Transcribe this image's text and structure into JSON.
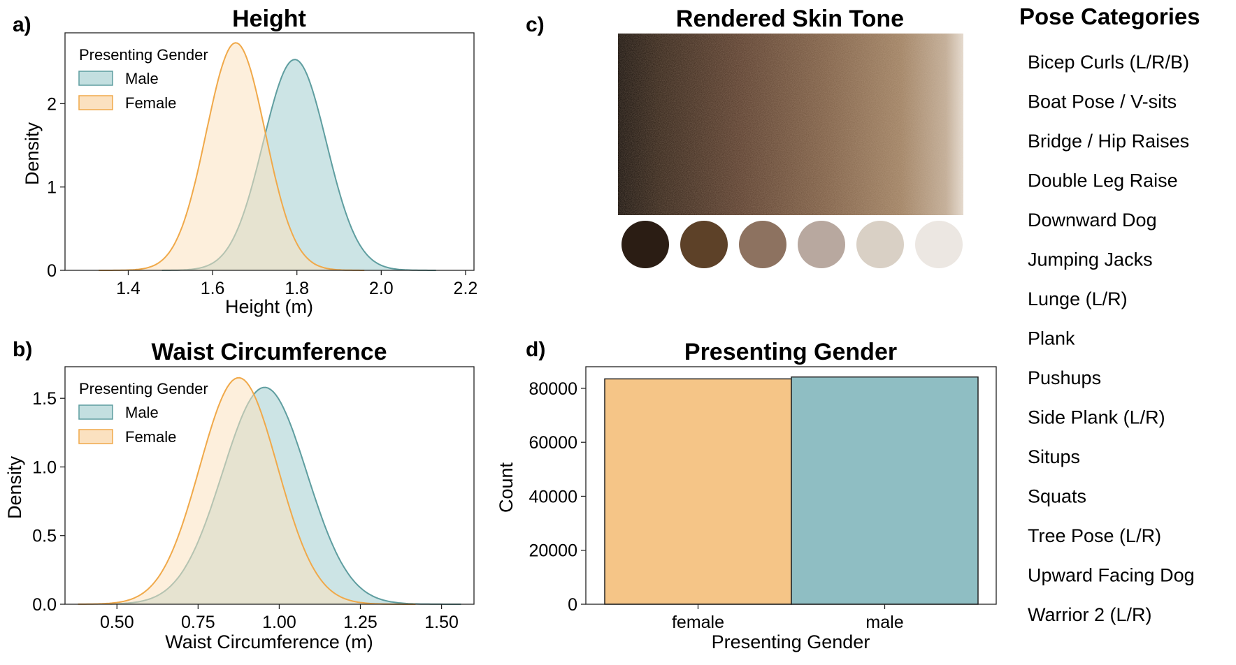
{
  "panels": {
    "a": {
      "label": "a)"
    },
    "b": {
      "label": "b)"
    },
    "c": {
      "label": "c)",
      "title": "Rendered Skin Tone"
    },
    "d": {
      "label": "d)"
    }
  },
  "skin_tones": {
    "swatches": [
      "#2b1d14",
      "#5d4128",
      "#8d7260",
      "#b8a89f",
      "#d9d0c5",
      "#ece7e2"
    ]
  },
  "pose_categories": {
    "title": "Pose Categories",
    "items": [
      "Bicep Curls (L/R/B)",
      "Boat Pose / V-sits",
      "Bridge / Hip Raises",
      "Double Leg Raise",
      "Downward Dog",
      "Jumping Jacks",
      "Lunge (L/R)",
      "Plank",
      "Pushups",
      "Side Plank (L/R)",
      "Situps",
      "Squats",
      "Tree Pose (L/R)",
      "Upward Facing Dog",
      "Warrior 2 (L/R)"
    ]
  },
  "colors": {
    "male": "#5f9ea0",
    "female": "#f0a94a",
    "male_fill": "#c3dfe0",
    "female_fill": "#fbe1c0",
    "bar_female": "#f5c587",
    "bar_male": "#8fbec3"
  },
  "chart_data": [
    {
      "id": "height",
      "type": "area",
      "title": "Height",
      "xlabel": "Height (m)",
      "ylabel": "Density",
      "xlim": [
        1.25,
        2.22
      ],
      "ylim": [
        0,
        2.85
      ],
      "xticks": [
        1.4,
        1.6,
        1.8,
        2.0,
        2.2
      ],
      "xtick_labels": [
        "1.4",
        "1.6",
        "1.8",
        "2.0",
        "2.2"
      ],
      "yticks": [
        0,
        1,
        2
      ],
      "ytick_labels": [
        "0",
        "1",
        "2"
      ],
      "legend": {
        "title": "Presenting Gender",
        "placement": "top-left"
      },
      "series": [
        {
          "name": "Male",
          "mean": 1.795,
          "sd": 0.075,
          "peak": 2.53,
          "x_range": [
            1.48,
            2.13
          ]
        },
        {
          "name": "Female",
          "mean": 1.655,
          "sd": 0.07,
          "peak": 2.73,
          "x_range": [
            1.33,
            1.96
          ]
        }
      ]
    },
    {
      "id": "waist",
      "type": "area",
      "title": "Waist Circumference",
      "xlabel": "Waist Circumference (m)",
      "ylabel": "Density",
      "xlim": [
        0.34,
        1.6
      ],
      "ylim": [
        0,
        1.73
      ],
      "xticks": [
        0.5,
        0.75,
        1.0,
        1.25,
        1.5
      ],
      "xtick_labels": [
        "0.50",
        "0.75",
        "1.00",
        "1.25",
        "1.50"
      ],
      "yticks": [
        0,
        0.5,
        1.0,
        1.5
      ],
      "ytick_labels": [
        "0.0",
        "0.5",
        "1.0",
        "1.5"
      ],
      "legend": {
        "title": "Presenting Gender",
        "placement": "top-left"
      },
      "series": [
        {
          "name": "Male",
          "mean": 0.955,
          "sd": 0.13,
          "peak": 1.58,
          "x_range": [
            0.48,
            1.56
          ]
        },
        {
          "name": "Female",
          "mean": 0.875,
          "sd": 0.12,
          "peak": 1.65,
          "x_range": [
            0.38,
            1.42
          ]
        }
      ]
    },
    {
      "id": "gender",
      "type": "bar",
      "title": "Presenting Gender",
      "xlabel": "Presenting Gender",
      "ylabel": "Count",
      "categories": [
        "female",
        "male"
      ],
      "values": [
        83500,
        84200
      ],
      "ylim": [
        0,
        88000
      ],
      "yticks": [
        0,
        20000,
        40000,
        60000,
        80000
      ],
      "ytick_labels": [
        "0",
        "20000",
        "40000",
        "60000",
        "80000"
      ]
    }
  ]
}
